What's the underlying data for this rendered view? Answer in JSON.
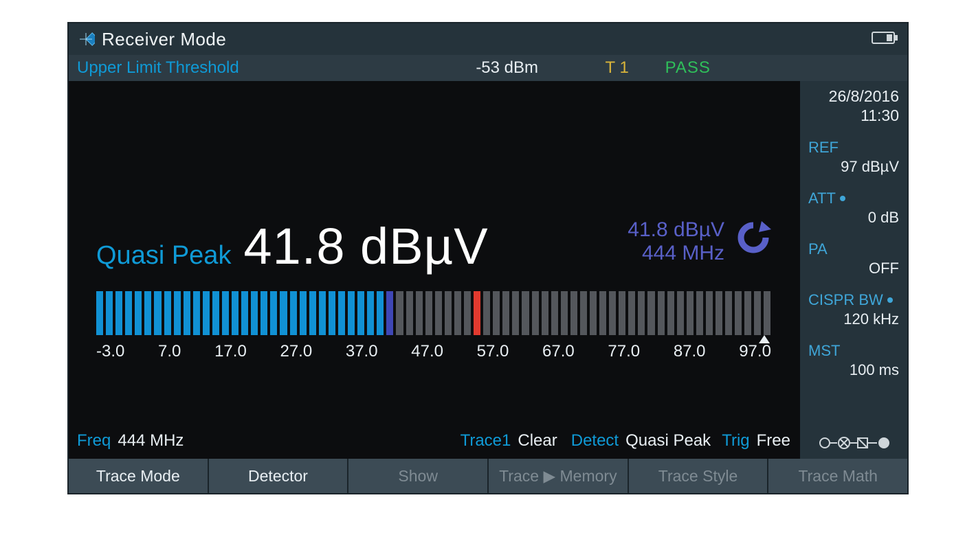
{
  "title": "Receiver Mode",
  "statusbar": {
    "upper_label": "Upper Limit Threshold",
    "dbm": "-53 dBm",
    "trace_marker": "T 1",
    "pass": "PASS"
  },
  "datetime": {
    "date": "26/8/2016",
    "time": "11:30"
  },
  "right": {
    "ref": {
      "label": "REF",
      "value": "97 dBµV"
    },
    "att": {
      "label": "ATT",
      "value": "0 dB",
      "dot": true
    },
    "pa": {
      "label": "PA",
      "value": "OFF"
    },
    "cispr": {
      "label": "CISPR BW",
      "value": "120 kHz",
      "dot": true
    },
    "mst": {
      "label": "MST",
      "value": "100 ms"
    }
  },
  "reading": {
    "detector_label": "Quasi Peak",
    "value_text": "41.8 dBµV",
    "memory_value": "41.8 dBµV",
    "memory_freq": "444 MHz"
  },
  "bargraph": {
    "min": -3.0,
    "max": 97.0,
    "segments": 70,
    "filled_to": 41.8,
    "marker_at": 53.0,
    "tick_labels": [
      "-3.0",
      "7.0",
      "17.0",
      "27.0",
      "37.0",
      "47.0",
      "57.0",
      "67.0",
      "77.0",
      "87.0",
      "97.0"
    ],
    "colors": {
      "filled": "#1191d4",
      "filled_last": "#3f47b6",
      "empty": "#54575c",
      "marker": "#e23a2f",
      "background": "#0c0d0f"
    }
  },
  "footer": {
    "freq_key": "Freq",
    "freq_val": "444 MHz",
    "trace_key": "Trace1",
    "trace_val": "Clear",
    "detect_key": "Detect",
    "detect_val": "Quasi Peak",
    "trig_key": "Trig",
    "trig_val": "Free"
  },
  "softkeys": [
    {
      "label": "Trace Mode",
      "enabled": true
    },
    {
      "label": "Detector",
      "enabled": true
    },
    {
      "label": "Show",
      "enabled": false
    },
    {
      "label": "Trace ▶ Memory",
      "enabled": false
    },
    {
      "label": "Trace Style",
      "enabled": false
    },
    {
      "label": "Trace Math",
      "enabled": false
    }
  ],
  "colors": {
    "accent_blue": "#0f9ad6",
    "panel": "#25333b",
    "panel_light": "#3c4b55",
    "text": "#e8eef2",
    "yellow": "#d9b43a",
    "green": "#2fbf5a",
    "memory_purple": "#5960c8"
  }
}
